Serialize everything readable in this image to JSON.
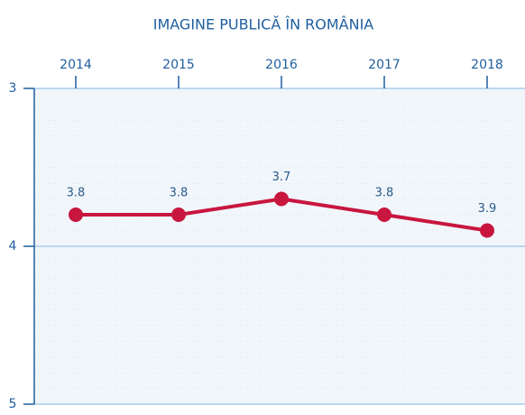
{
  "chart_data": {
    "type": "line",
    "title": "IMAGINE PUBLICĂ ÎN ROMÂNIA",
    "categories": [
      "2014",
      "2015",
      "2016",
      "2017",
      "2018"
    ],
    "series": [
      {
        "name": null,
        "color": "#c8163f",
        "values": [
          3.8,
          3.8,
          3.7,
          3.8,
          3.9
        ]
      }
    ],
    "ylim": [
      3,
      5
    ],
    "yticks": [
      3,
      4,
      5
    ],
    "y_inverted": true,
    "grid": true,
    "x_axis_position": "top"
  }
}
